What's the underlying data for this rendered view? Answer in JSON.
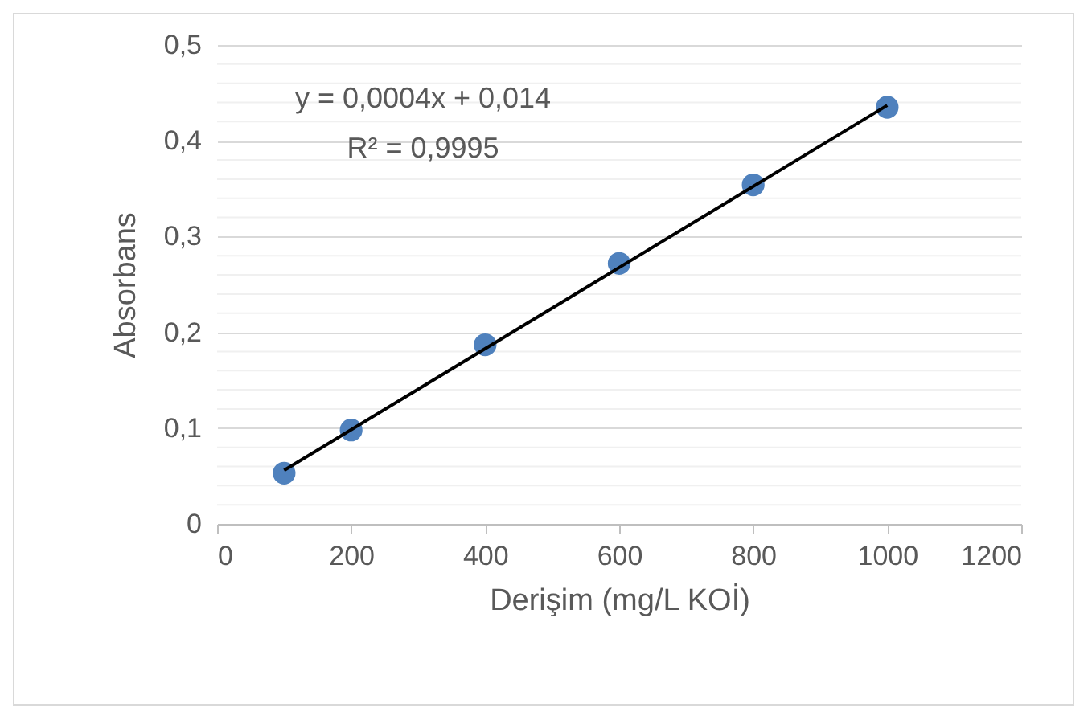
{
  "chart_data": {
    "type": "scatter",
    "xlabel": "Derişim (mg/L KOİ)",
    "ylabel": "Absorbans",
    "annotations": [
      "y = 0,0004x + 0,014",
      "R² = 0,9995"
    ],
    "x": [
      100,
      200,
      400,
      600,
      800,
      1000
    ],
    "series": [
      {
        "color": "#4f81bd",
        "marker": "circle",
        "values": [
          0.053,
          0.098,
          0.187,
          0.272,
          0.354,
          0.435
        ]
      },
      {
        "type": "line",
        "color": "#000000",
        "marker": "none",
        "line_style": "solid",
        "x": [
          100,
          1000
        ],
        "values": [
          0.056,
          0.437
        ]
      }
    ],
    "xlim": [
      0,
      1200
    ],
    "xticks": [
      0,
      200,
      400,
      600,
      800,
      1000,
      1200
    ],
    "ylim": [
      0,
      0.5
    ],
    "yticks": [
      {
        "value": 0,
        "label": "0"
      },
      {
        "value": 0.1,
        "label": "0,1"
      },
      {
        "value": 0.2,
        "label": "0,2"
      },
      {
        "value": 0.3,
        "label": "0,3"
      },
      {
        "value": 0.4,
        "label": "0,4"
      },
      {
        "value": 0.5,
        "label": "0,5"
      }
    ],
    "grid": "y"
  }
}
